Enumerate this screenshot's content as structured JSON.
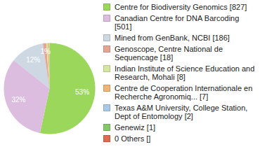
{
  "chart_data": {
    "type": "pie",
    "categories": [
      "Centre for Biodiversity Genomics [827]",
      "Canadian Centre for DNA Barcoding [501]",
      "Mined from GenBank, NCBI [186]",
      "Genoscope, Centre National de Sequencage [18]",
      "Indian Institute of Science Education and Research, Mohali [8]",
      "Centre de Cooperation Internationale en Recherche Agronomiq... [7]",
      "Texas A&M University, College Station, Dept of Entomology [2]",
      "Genewiz [1]",
      "0 Others []"
    ],
    "values": [
      53.35,
      32.32,
      12.0,
      1.16,
      0.52,
      0.45,
      0.13,
      0.06,
      0
    ],
    "value_labels": [
      "53%",
      "32%",
      "12%",
      "1%",
      null,
      null,
      null,
      null,
      null
    ],
    "data_labels": true,
    "colors": [
      "#9bd75a",
      "#dcbde0",
      "#cdd8e3",
      "#e4a592",
      "#d6e6a2",
      "#f0b474",
      "#a9c7e6",
      "#86c868",
      "#e06a50"
    ],
    "legend": "right"
  }
}
